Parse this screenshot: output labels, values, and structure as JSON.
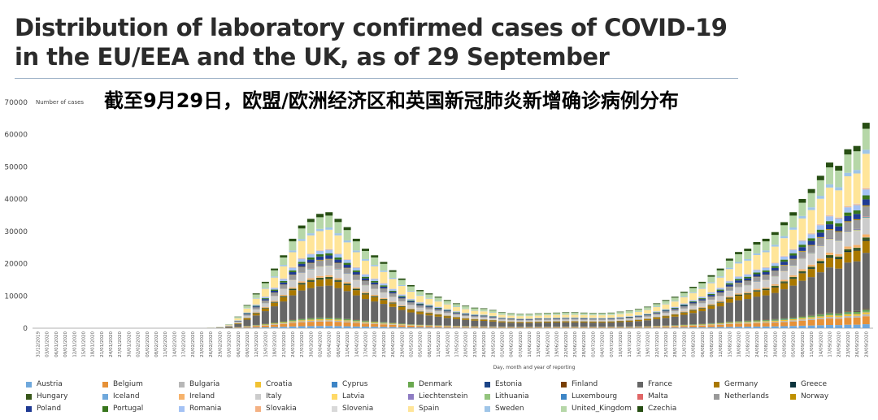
{
  "title_lines": [
    "Distribution of laboratory confirmed cases of COVID-19",
    "in the EU/EEA and the UK, as of 29 September"
  ],
  "subtitle_cn": "截至9月29日，欧盟/欧洲经济区和英国新冠肺炎新增确诊病例分布",
  "chart_data": {
    "type": "bar",
    "stacked": true,
    "ylabel": "Number of cases",
    "xlabel": "Day, month and year of reporting",
    "ylim": [
      0,
      70000
    ],
    "yticks": [
      0,
      10000,
      20000,
      30000,
      40000,
      50000,
      60000,
      70000
    ],
    "grid": false,
    "legend_position": "bottom",
    "x_tick_labels": [
      "31/12/2019",
      "03/01/2020",
      "06/01/2020",
      "09/01/2020",
      "12/01/2020",
      "15/01/2020",
      "18/01/2020",
      "21/01/2020",
      "24/01/2020",
      "27/01/2020",
      "30/01/2020",
      "02/02/2020",
      "05/02/2020",
      "08/02/2020",
      "11/02/2020",
      "14/02/2020",
      "17/02/2020",
      "20/02/2020",
      "23/02/2020",
      "26/02/2020",
      "29/02/2020",
      "03/03/2020",
      "06/03/2020",
      "09/03/2020",
      "12/03/2020",
      "15/03/2020",
      "18/03/2020",
      "21/03/2020",
      "24/03/2020",
      "27/03/2020",
      "30/03/2020",
      "02/04/2020",
      "05/04/2020",
      "08/04/2020",
      "11/04/2020",
      "14/04/2020",
      "17/04/2020",
      "20/04/2020",
      "23/04/2020",
      "26/04/2020",
      "29/04/2020",
      "02/05/2020",
      "05/05/2020",
      "08/05/2020",
      "11/05/2020",
      "14/05/2020",
      "17/05/2020",
      "20/05/2020",
      "23/05/2020",
      "26/05/2020",
      "29/05/2020",
      "01/06/2020",
      "04/06/2020",
      "07/06/2020",
      "10/06/2020",
      "13/06/2020",
      "16/06/2020",
      "19/06/2020",
      "22/06/2020",
      "25/06/2020",
      "28/06/2020",
      "01/07/2020",
      "04/07/2020",
      "07/07/2020",
      "10/07/2020",
      "13/07/2020",
      "16/07/2020",
      "19/07/2020",
      "22/07/2020",
      "25/07/2020",
      "28/07/2020",
      "31/07/2020",
      "03/08/2020",
      "06/08/2020",
      "09/08/2020",
      "12/08/2020",
      "15/08/2020",
      "18/08/2020",
      "21/08/2020",
      "24/08/2020",
      "27/08/2020",
      "30/08/2020",
      "02/09/2020",
      "05/09/2020",
      "08/09/2020",
      "11/09/2020",
      "14/09/2020",
      "17/09/2020",
      "20/09/2020",
      "23/09/2020",
      "26/09/2020",
      "29/09/2020"
    ],
    "totals_every_3_days": [
      0,
      0,
      0,
      0,
      0,
      0,
      0,
      0,
      0,
      0,
      0,
      0,
      0,
      0,
      0,
      0,
      0,
      0,
      0,
      150,
      400,
      1200,
      3500,
      7000,
      10500,
      14000,
      18000,
      22000,
      27000,
      31000,
      33000,
      34500,
      35000,
      33000,
      30500,
      27000,
      24000,
      22000,
      20000,
      17500,
      15000,
      13000,
      11500,
      10500,
      9500,
      8500,
      7500,
      6800,
      6200,
      6000,
      5500,
      4800,
      4500,
      4300,
      4300,
      4500,
      4600,
      4700,
      4800,
      4800,
      4700,
      4600,
      4600,
      4700,
      5000,
      5300,
      5800,
      6500,
      7500,
      8500,
      9500,
      11000,
      12500,
      14000,
      16000,
      18000,
      21000,
      23000,
      24000,
      26000,
      27000,
      29000,
      32000,
      35000,
      39000,
      42000,
      46000,
      50000,
      49000,
      54000,
      55000,
      62000
    ],
    "series": [
      {
        "name": "Austria",
        "share": 0.02
      },
      {
        "name": "Belgium",
        "share": 0.04
      },
      {
        "name": "Bulgaria",
        "share": 0.01
      },
      {
        "name": "Croatia",
        "share": 0.01
      },
      {
        "name": "Cyprus",
        "share": 0.002
      },
      {
        "name": "Denmark",
        "share": 0.01
      },
      {
        "name": "Estonia",
        "share": 0.002
      },
      {
        "name": "Finland",
        "share": 0.003
      },
      {
        "name": "France",
        "share": 0.28
      },
      {
        "name": "Germany",
        "share": 0.06
      },
      {
        "name": "Greece",
        "share": 0.006
      },
      {
        "name": "Hungary",
        "share": 0.01
      },
      {
        "name": "Iceland",
        "share": 0.001
      },
      {
        "name": "Ireland",
        "share": 0.015
      },
      {
        "name": "Italy",
        "share": 0.08
      },
      {
        "name": "Latvia",
        "share": 0.002
      },
      {
        "name": "Liechtenstein",
        "share": 0.001
      },
      {
        "name": "Lithuania",
        "share": 0.002
      },
      {
        "name": "Luxembourg",
        "share": 0.003
      },
      {
        "name": "Malta",
        "share": 0.002
      },
      {
        "name": "Netherlands",
        "share": 0.05
      },
      {
        "name": "Norway",
        "share": 0.005
      },
      {
        "name": "Poland",
        "share": 0.03
      },
      {
        "name": "Portugal",
        "share": 0.02
      },
      {
        "name": "Romania",
        "share": 0.03
      },
      {
        "name": "Slovakia",
        "share": 0.005
      },
      {
        "name": "Slovenia",
        "share": 0.003
      },
      {
        "name": "Spain",
        "share": 0.17
      },
      {
        "name": "Sweden",
        "share": 0.02
      },
      {
        "name": "United_Kingdom",
        "share": 0.105
      },
      {
        "name": "Czechia",
        "share": 0.03
      }
    ]
  },
  "colors": [
    "#6fa8dc",
    "#e69138",
    "#b7b7b7",
    "#f1c232",
    "#3d85c6",
    "#6aa84f",
    "#1c4587",
    "#783f04",
    "#666666",
    "#a97800",
    "#0c343d",
    "#38571a",
    "#6fa8dc",
    "#f6b26b",
    "#cccccc",
    "#ffd966",
    "#8e7cc3",
    "#93c47d",
    "#3d85c6",
    "#e06666",
    "#999999",
    "#bf9000",
    "#1f3a93",
    "#38761d",
    "#a4c2f4",
    "#f4b183",
    "#d9d9d9",
    "#ffe599",
    "#9fc5e8",
    "#b6d7a8",
    "#274e13"
  ]
}
